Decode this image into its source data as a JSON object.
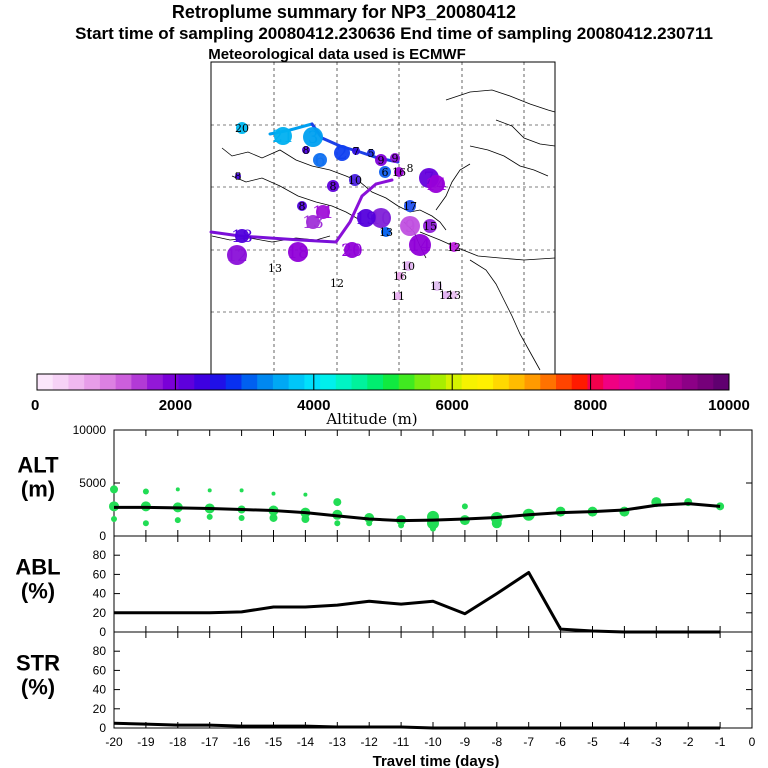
{
  "titles": {
    "line1": "Retroplume summary for NP3_20080412",
    "line2": "Start time of sampling 20080412.230636     End time of sampling 20080412.230711",
    "line3": "Meteorological data used is ECMWF"
  },
  "colors": {
    "plume_marker": "#22dd55",
    "line": "#000000"
  },
  "colorbar": {
    "label": "Altitude (m)",
    "ticks": [
      "0",
      "2000",
      "4000",
      "6000",
      "8000",
      "10000"
    ],
    "tick_values": [
      0,
      2000,
      4000,
      6000,
      8000,
      10000
    ],
    "colors": [
      "#fbe6fb",
      "#f6d2f6",
      "#f0b8f0",
      "#e79de9",
      "#dc80e2",
      "#cc5fdc",
      "#b23ad6",
      "#9318d8",
      "#7a00d8",
      "#5e00dc",
      "#3e00e0",
      "#2010e8",
      "#0830f0",
      "#0060f0",
      "#0088f0",
      "#00a8f4",
      "#00c6f8",
      "#00e0fc",
      "#00f0ec",
      "#00f4c4",
      "#00f29c",
      "#00ee70",
      "#10ea40",
      "#40ea20",
      "#78ec10",
      "#a8ee00",
      "#d4f200",
      "#f6f200",
      "#fff000",
      "#ffd800",
      "#ffbc00",
      "#ff9a00",
      "#ff7200",
      "#ff4400",
      "#ff1a00",
      "#f4004c",
      "#f00082",
      "#e40096",
      "#d400a0",
      "#be0098",
      "#a40090",
      "#8c0086",
      "#76007a",
      "#600070"
    ]
  },
  "map": {
    "labels": [
      {
        "t": "20",
        "c": "#00b8f0",
        "big": false
      },
      {
        "t": "21",
        "c": "#00b0f0",
        "big": true
      },
      {
        "t": "3",
        "c": "#00a0f0",
        "big": true
      },
      {
        "t": "7",
        "c": "#3010e0",
        "big": false
      },
      {
        "t": "5",
        "c": "#1c30e8",
        "big": false
      },
      {
        "t": "9",
        "c": "#8a10d8",
        "big": false
      },
      {
        "t": "6",
        "c": "#1070f0",
        "big": true
      },
      {
        "t": "2",
        "c": "#1040f0",
        "big": true
      },
      {
        "t": "8",
        "c": "#4a00dc",
        "big": false
      },
      {
        "t": "9",
        "c": "#8000d8",
        "big": false
      },
      {
        "t": "16",
        "c": "#9a00d8",
        "big": false
      },
      {
        "t": "7",
        "c": "#6400dc",
        "big": true
      },
      {
        "t": "8",
        "c": "#4000e0",
        "big": false
      },
      {
        "t": "8",
        "c": "#6000dc",
        "big": false
      },
      {
        "t": "10",
        "c": "#4a20e0",
        "big": false
      },
      {
        "t": "6",
        "c": "#1060f0",
        "big": false
      },
      {
        "t": "11",
        "c": "#a010d8",
        "big": true
      },
      {
        "t": "13",
        "c": "#a030d8",
        "big": true
      },
      {
        "t": "18",
        "c": "#5000dc",
        "big": true
      },
      {
        "t": "10",
        "c": "#8020d8",
        "big": true
      },
      {
        "t": "19",
        "c": "#5400dc",
        "big": true
      },
      {
        "t": "9",
        "c": "#c050e0",
        "big": true
      },
      {
        "t": "15",
        "c": "#9020d8",
        "big": false
      },
      {
        "t": "13",
        "c": "#0060f0",
        "big": false
      },
      {
        "t": "17",
        "c": "#2050f0",
        "big": false
      },
      {
        "t": "14",
        "c": "#9000d8",
        "big": true
      },
      {
        "t": "18",
        "c": "#9000d8",
        "big": true
      },
      {
        "t": "12",
        "c": "#8a10d8",
        "big": true
      },
      {
        "t": "20",
        "c": "#9000d8",
        "big": true
      },
      {
        "t": "14",
        "c": "#9800d8",
        "big": true
      },
      {
        "t": "12",
        "c": "#c020e0",
        "big": false
      },
      {
        "t": "13",
        "c": "#000000",
        "big": false
      },
      {
        "t": "12",
        "c": "#000000",
        "big": false
      },
      {
        "t": "16",
        "c": "#e8a0e8",
        "big": false
      },
      {
        "t": "10",
        "c": "#e0b0f0",
        "big": false
      },
      {
        "t": "11",
        "c": "#e8b0f0",
        "big": false
      },
      {
        "t": "11",
        "c": "#e0c0f0",
        "big": false
      },
      {
        "t": "12",
        "c": "#e0b0f0",
        "big": false
      },
      {
        "t": "13",
        "c": "#e8c0f0",
        "big": false
      },
      {
        "t": "8",
        "c": "#000000",
        "big": false
      },
      {
        "t": "8",
        "c": "#5000dc",
        "big": false
      }
    ]
  },
  "chart_data": [
    {
      "type": "line",
      "title": "ALT",
      "ylabel": "ALT (m)",
      "ylabel_line1": "ALT",
      "ylabel_line2": "(m)",
      "ylim": [
        0,
        10000
      ],
      "yticks": [
        "10000",
        "5000",
        "0"
      ],
      "ytick_values": [
        10000,
        5000,
        0
      ],
      "x": [
        -20,
        -19,
        -18,
        -17,
        -16,
        -15,
        -14,
        -13,
        -12,
        -11,
        -10,
        -9,
        -8,
        -7,
        -6,
        -5,
        -4,
        -3,
        -2,
        -1
      ],
      "values": [
        2700,
        2700,
        2650,
        2600,
        2500,
        2400,
        2200,
        1900,
        1600,
        1450,
        1500,
        1600,
        1750,
        2000,
        2200,
        2300,
        2450,
        2900,
        3050,
        2800
      ],
      "plume_points": [
        {
          "x": -20,
          "y": 4400,
          "r": 4
        },
        {
          "x": -20,
          "y": 2800,
          "r": 5
        },
        {
          "x": -20,
          "y": 1600,
          "r": 3
        },
        {
          "x": -19,
          "y": 4200,
          "r": 3
        },
        {
          "x": -19,
          "y": 2800,
          "r": 5
        },
        {
          "x": -19,
          "y": 1200,
          "r": 3
        },
        {
          "x": -18,
          "y": 4400,
          "r": 2
        },
        {
          "x": -18,
          "y": 2700,
          "r": 5
        },
        {
          "x": -18,
          "y": 1500,
          "r": 3
        },
        {
          "x": -17,
          "y": 4300,
          "r": 2
        },
        {
          "x": -17,
          "y": 2600,
          "r": 5
        },
        {
          "x": -17,
          "y": 1800,
          "r": 3
        },
        {
          "x": -16,
          "y": 4300,
          "r": 2
        },
        {
          "x": -16,
          "y": 2500,
          "r": 4
        },
        {
          "x": -16,
          "y": 1700,
          "r": 3
        },
        {
          "x": -15,
          "y": 4000,
          "r": 2
        },
        {
          "x": -15,
          "y": 2400,
          "r": 5
        },
        {
          "x": -15,
          "y": 1700,
          "r": 4
        },
        {
          "x": -14,
          "y": 3900,
          "r": 2
        },
        {
          "x": -14,
          "y": 2200,
          "r": 5
        },
        {
          "x": -14,
          "y": 1600,
          "r": 4
        },
        {
          "x": -13,
          "y": 3200,
          "r": 4
        },
        {
          "x": -13,
          "y": 2000,
          "r": 5
        },
        {
          "x": -13,
          "y": 1200,
          "r": 3
        },
        {
          "x": -12,
          "y": 1700,
          "r": 5
        },
        {
          "x": -12,
          "y": 1200,
          "r": 3
        },
        {
          "x": -11,
          "y": 1500,
          "r": 5
        },
        {
          "x": -11,
          "y": 1000,
          "r": 3
        },
        {
          "x": -10,
          "y": 1800,
          "r": 6
        },
        {
          "x": -10,
          "y": 1200,
          "r": 6
        },
        {
          "x": -10,
          "y": 700,
          "r": 3
        },
        {
          "x": -9,
          "y": 2800,
          "r": 3
        },
        {
          "x": -9,
          "y": 1500,
          "r": 5
        },
        {
          "x": -8,
          "y": 1700,
          "r": 6
        },
        {
          "x": -8,
          "y": 1200,
          "r": 5
        },
        {
          "x": -7,
          "y": 2000,
          "r": 6
        },
        {
          "x": -6,
          "y": 2300,
          "r": 5
        },
        {
          "x": -5,
          "y": 2300,
          "r": 5
        },
        {
          "x": -4,
          "y": 2300,
          "r": 5
        },
        {
          "x": -3,
          "y": 3200,
          "r": 5
        },
        {
          "x": -2,
          "y": 3200,
          "r": 4
        },
        {
          "x": -1,
          "y": 2800,
          "r": 4
        }
      ]
    },
    {
      "type": "line",
      "title": "ABL",
      "ylabel": "ABL (%)",
      "ylabel_line1": "ABL",
      "ylabel_line2": "(%)",
      "ylim": [
        0,
        100
      ],
      "yticks": [
        "80",
        "60",
        "40",
        "20",
        "0"
      ],
      "ytick_values": [
        80,
        60,
        40,
        20,
        0
      ],
      "x": [
        -20,
        -19,
        -18,
        -17,
        -16,
        -15,
        -14,
        -13,
        -12,
        -11,
        -10,
        -9,
        -8,
        -7,
        -6,
        -5,
        -4,
        -3,
        -2,
        -1
      ],
      "values": [
        20,
        20,
        20,
        20,
        21,
        26,
        26,
        28,
        32,
        29,
        32,
        19,
        40,
        62,
        3,
        1,
        0,
        0,
        0,
        0
      ]
    },
    {
      "type": "line",
      "title": "STR",
      "ylabel": "STR (%)",
      "ylabel_line1": "STR",
      "ylabel_line2": "(%)",
      "xlabel": "Travel time (days)",
      "ylim": [
        0,
        100
      ],
      "yticks": [
        "80",
        "60",
        "40",
        "20",
        "0"
      ],
      "ytick_values": [
        80,
        60,
        40,
        20,
        0
      ],
      "xlim": [
        -20,
        0
      ],
      "xticks": [
        "-20",
        "-19",
        "-18",
        "-17",
        "-16",
        "-15",
        "-14",
        "-13",
        "-12",
        "-11",
        "-10",
        "-9",
        "-8",
        "-7",
        "-6",
        "-5",
        "-4",
        "-3",
        "-2",
        "-1",
        "0"
      ],
      "xtick_values": [
        -20,
        -19,
        -18,
        -17,
        -16,
        -15,
        -14,
        -13,
        -12,
        -11,
        -10,
        -9,
        -8,
        -7,
        -6,
        -5,
        -4,
        -3,
        -2,
        -1,
        0
      ],
      "x": [
        -20,
        -19,
        -18,
        -17,
        -16,
        -15,
        -14,
        -13,
        -12,
        -11,
        -10,
        -9,
        -8,
        -7,
        -6,
        -5,
        -4,
        -3,
        -2,
        -1
      ],
      "values": [
        5,
        4,
        3,
        3,
        2,
        2,
        2,
        1,
        1,
        1,
        0,
        0,
        0,
        0,
        0,
        0,
        0,
        0,
        0,
        0
      ]
    }
  ]
}
